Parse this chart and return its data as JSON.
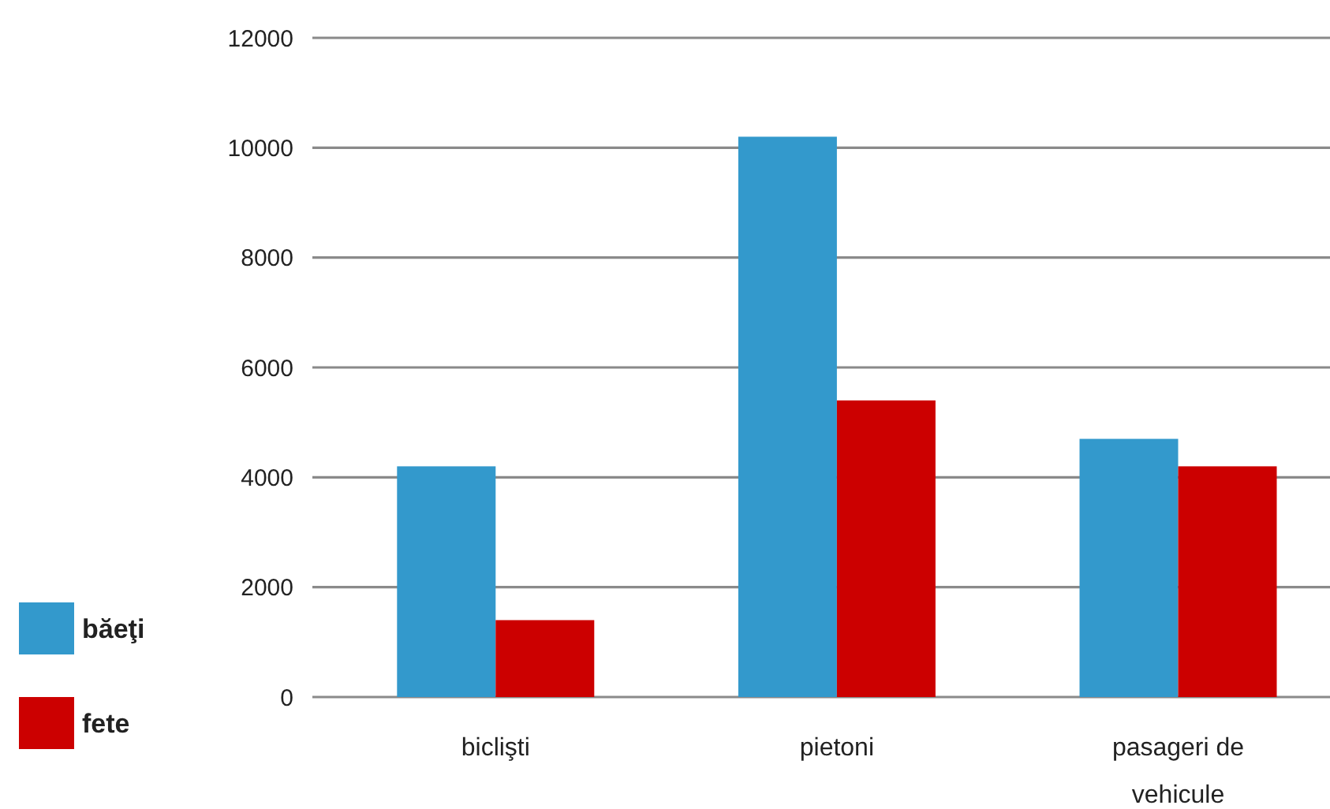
{
  "chart_data": {
    "type": "bar",
    "categories": [
      "biclişti",
      "pietoni",
      "pasageri de vehicule"
    ],
    "series": [
      {
        "name": "băeţi",
        "color": "#3399cc",
        "values": [
          4200,
          10200,
          4700
        ]
      },
      {
        "name": "fete",
        "color": "#cc0000",
        "values": [
          1400,
          5400,
          4200
        ]
      }
    ],
    "ylim": [
      0,
      12000
    ],
    "yticks": [
      0,
      2000,
      4000,
      6000,
      8000,
      10000,
      12000
    ],
    "grid": "y",
    "legend": "left"
  }
}
